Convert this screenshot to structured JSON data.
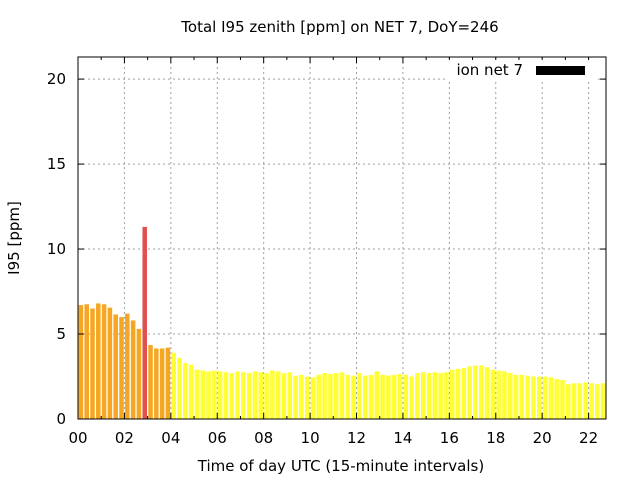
{
  "chart_data": {
    "type": "bar",
    "title": "Total I95 zenith [ppm] on NET 7, DoY=246",
    "xlabel": "Time of day UTC (15-minute intervals)",
    "ylabel": "I95 [ppm]",
    "legend": {
      "label": "ion net 7",
      "color": "#000000",
      "position": "top-right"
    },
    "xlim": [
      0,
      22.75
    ],
    "ylim": [
      0,
      21.3
    ],
    "grid": true,
    "x_ticks": [
      "00",
      "02",
      "04",
      "06",
      "08",
      "10",
      "12",
      "14",
      "16",
      "18",
      "20",
      "22"
    ],
    "y_ticks": [
      "0",
      "5",
      "10",
      "15",
      "20"
    ],
    "colors": {
      "high": "#e05050",
      "medium": "#f5a623",
      "low": "#ffff33"
    },
    "interval_hours": 0.25,
    "values": [
      6.7,
      6.75,
      6.5,
      6.8,
      6.75,
      6.55,
      6.15,
      6.0,
      6.2,
      5.8,
      5.3,
      11.3,
      4.35,
      4.15,
      4.15,
      4.2,
      3.9,
      3.6,
      3.3,
      3.2,
      2.9,
      2.85,
      2.8,
      2.85,
      2.8,
      2.75,
      2.7,
      2.8,
      2.75,
      2.7,
      2.8,
      2.75,
      2.7,
      2.85,
      2.8,
      2.7,
      2.75,
      2.55,
      2.6,
      2.5,
      2.45,
      2.6,
      2.7,
      2.65,
      2.7,
      2.75,
      2.6,
      2.55,
      2.7,
      2.55,
      2.6,
      2.8,
      2.6,
      2.55,
      2.6,
      2.65,
      2.6,
      2.5,
      2.7,
      2.75,
      2.7,
      2.75,
      2.7,
      2.75,
      2.9,
      2.95,
      3.0,
      3.1,
      3.15,
      3.15,
      3.05,
      2.9,
      2.85,
      2.8,
      2.7,
      2.6,
      2.6,
      2.55,
      2.5,
      2.5,
      2.5,
      2.45,
      2.35,
      2.3,
      2.05,
      2.1,
      2.1,
      2.15,
      2.1,
      2.05,
      2.1,
      2.05
    ],
    "categories_by_index": "first 11 medium, index 11 high, indices 12-15 medium, rest low"
  }
}
